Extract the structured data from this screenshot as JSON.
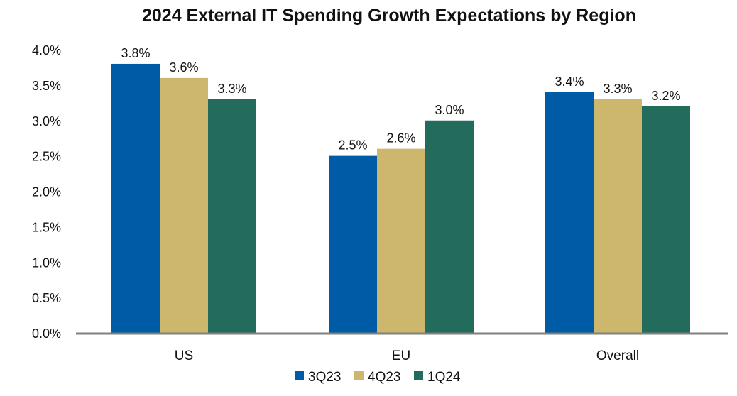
{
  "chart_data": {
    "type": "bar",
    "title": "2024 External IT Spending Growth Expectations by Region",
    "xlabel": "",
    "ylabel": "",
    "categories": [
      "US",
      "EU",
      "Overall"
    ],
    "series": [
      {
        "name": "3Q23",
        "color": "#005BA6",
        "values": [
          3.8,
          2.5,
          3.4
        ],
        "labels": [
          "3.8%",
          "2.5%",
          "3.4%"
        ]
      },
      {
        "name": "4Q23",
        "color": "#CDB76C",
        "values": [
          3.6,
          2.6,
          3.3
        ],
        "labels": [
          "3.6%",
          "2.6%",
          "3.3%"
        ]
      },
      {
        "name": "1Q24",
        "color": "#236B5B",
        "values": [
          3.3,
          3.0,
          3.2
        ],
        "labels": [
          "3.3%",
          "3.0%",
          "3.2%"
        ]
      }
    ],
    "ylim": [
      0,
      4
    ],
    "yticks": [
      "0.0%",
      "0.5%",
      "1.0%",
      "1.5%",
      "2.0%",
      "2.5%",
      "3.0%",
      "3.5%",
      "4.0%"
    ],
    "grid": false,
    "legend": "bottom-center"
  }
}
